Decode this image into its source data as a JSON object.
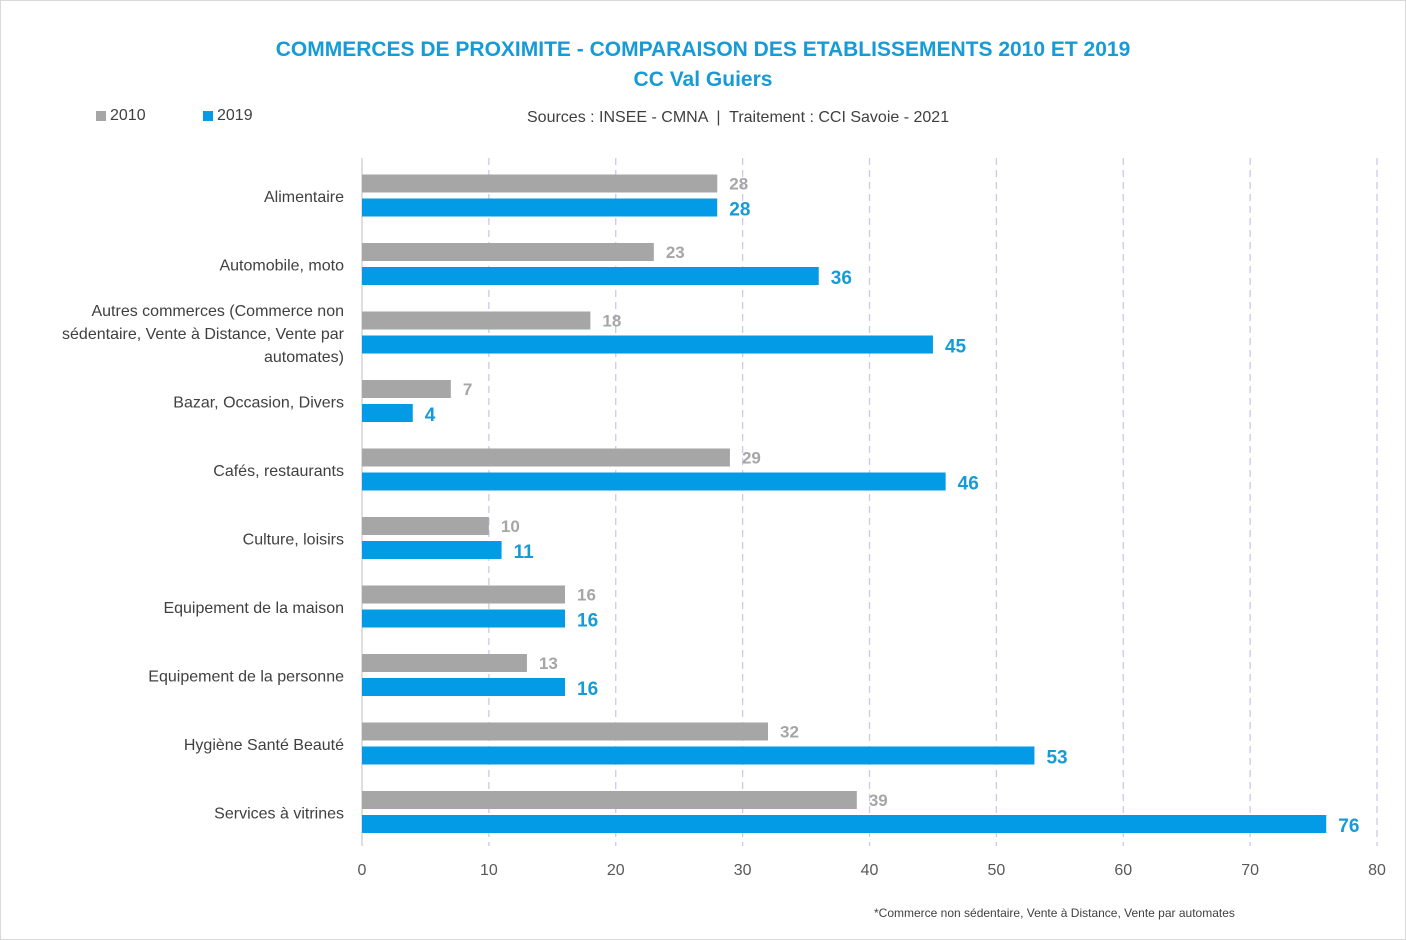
{
  "chart_data": {
    "type": "bar",
    "orientation": "horizontal",
    "title": "COMMERCES DE PROXIMITE - COMPARAISON DES ETABLISSEMENTS 2010 ET 2019",
    "subtitle": "CC Val Guiers",
    "source": "Sources : INSEE - CMNA  |  Traitement : CCI Savoie - 2021",
    "footnote": "*Commerce non sédentaire, Vente à Distance, Vente par automates",
    "categories": [
      "Alimentaire",
      "Automobile, moto",
      "Autres commerces (Commerce non sédentaire, Vente à Distance, Vente par automates)",
      "Bazar, Occasion, Divers",
      "Cafés, restaurants",
      "Culture, loisirs",
      "Equipement de la maison",
      "Equipement de la personne",
      "Hygiène Santé Beauté",
      "Services à vitrines"
    ],
    "category_label_lines": [
      [
        "Alimentaire"
      ],
      [
        "Automobile, moto"
      ],
      [
        "Autres commerces (Commerce non",
        "sédentaire, Vente à Distance, Vente par",
        "automates)"
      ],
      [
        "Bazar, Occasion, Divers"
      ],
      [
        "Cafés, restaurants"
      ],
      [
        "Culture, loisirs"
      ],
      [
        "Equipement de la maison"
      ],
      [
        "Equipement de la personne"
      ],
      [
        "Hygiène Santé Beauté"
      ],
      [
        "Services à vitrines"
      ]
    ],
    "series": [
      {
        "name": "2010",
        "color": "#a6a6a6",
        "values": [
          28,
          23,
          18,
          7,
          29,
          10,
          16,
          13,
          32,
          39
        ]
      },
      {
        "name": "2019",
        "color": "#039be5",
        "values": [
          28,
          36,
          45,
          4,
          46,
          11,
          16,
          16,
          53,
          76
        ]
      }
    ],
    "xlim": [
      0,
      80
    ],
    "xticks": [
      0,
      10,
      20,
      30,
      40,
      50,
      60,
      70,
      80
    ],
    "xtick_labels": [
      "0",
      "10",
      "20",
      "30",
      "40",
      "50",
      "60",
      "70",
      "80"
    ],
    "grid": "vertical dashed",
    "legend_position": "top-left"
  }
}
